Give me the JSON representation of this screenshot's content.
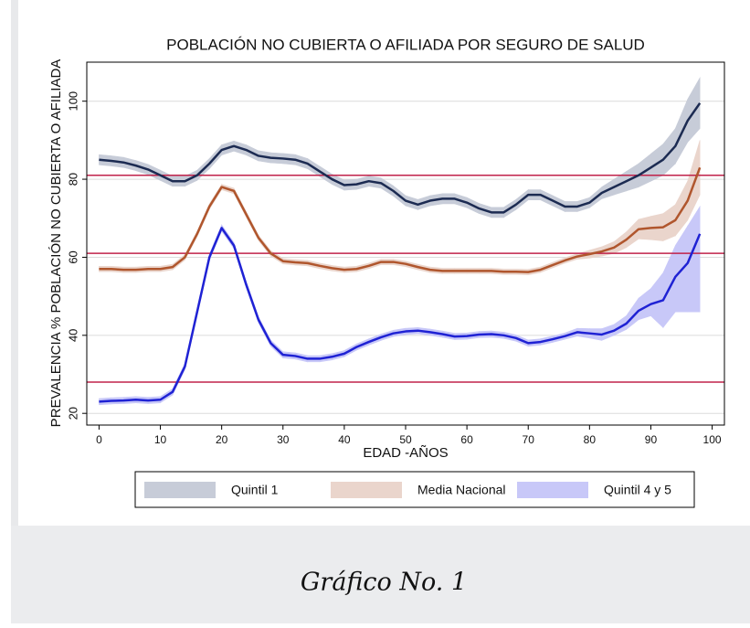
{
  "chart_data": {
    "type": "line",
    "title": "POBLACIÓN NO CUBIERTA O AFILIADA POR SEGURO DE SALUD",
    "x_label": "EDAD -AÑOS",
    "y_label": "PREVALENCIA % POBLACIÓN NO CUBIERTA O AFILIADA",
    "xlim": [
      -2,
      102
    ],
    "ylim": [
      17,
      110
    ],
    "xticks": [
      0,
      10,
      20,
      30,
      40,
      50,
      60,
      70,
      80,
      90,
      100
    ],
    "yticks": [
      20,
      40,
      60,
      80,
      100
    ],
    "grid": true,
    "hlines": [
      81,
      61,
      28
    ],
    "hline_color": "#c0224a",
    "x": [
      0,
      2,
      4,
      6,
      8,
      10,
      12,
      14,
      16,
      18,
      20,
      22,
      24,
      26,
      28,
      30,
      32,
      34,
      36,
      38,
      40,
      42,
      44,
      46,
      48,
      50,
      52,
      54,
      56,
      58,
      60,
      62,
      64,
      66,
      68,
      70,
      72,
      74,
      76,
      78,
      80,
      82,
      84,
      86,
      88,
      90,
      92,
      94,
      96,
      98
    ],
    "series": [
      {
        "name": "Quintil 1",
        "color": "#1c2b52",
        "band_color": "#c7ccd8",
        "values": [
          85,
          84.7,
          84.3,
          83.5,
          82.5,
          81,
          79.5,
          79.5,
          81,
          84,
          87.5,
          88.5,
          87.5,
          86,
          85.5,
          85.3,
          85,
          84,
          82,
          80,
          78.5,
          78.7,
          79.5,
          79,
          77,
          74.5,
          73.5,
          74.5,
          75,
          75,
          74,
          72.5,
          71.5,
          71.5,
          73.5,
          76,
          76,
          74.5,
          73,
          73,
          74,
          76.5,
          78,
          79.5,
          81,
          83,
          85,
          88.5,
          95,
          99.5
        ],
        "lower": [
          83.7,
          83.4,
          83,
          82.2,
          81.2,
          79.7,
          78.2,
          78.2,
          79.7,
          82.7,
          86.2,
          87.2,
          86.2,
          84.7,
          84.2,
          84,
          83.7,
          82.7,
          80.7,
          78.7,
          77.2,
          77.4,
          78.2,
          77.7,
          75.7,
          73.2,
          72.2,
          73.2,
          73.7,
          73.7,
          72.7,
          71.2,
          70.2,
          70.2,
          72.2,
          74.7,
          74.7,
          73.2,
          71.7,
          71.7,
          72.7,
          75,
          76,
          77,
          78,
          79.5,
          81,
          84,
          89.5,
          93
        ],
        "upper": [
          86.3,
          86,
          85.6,
          84.8,
          83.8,
          82.3,
          80.8,
          80.8,
          82.3,
          85.3,
          88.8,
          89.8,
          88.8,
          87.3,
          86.8,
          86.6,
          86.3,
          85.3,
          83.3,
          81.3,
          79.8,
          80,
          80.8,
          80.3,
          78.3,
          75.8,
          74.8,
          75.8,
          76.3,
          76.3,
          75.3,
          73.8,
          72.8,
          72.8,
          74.8,
          77.3,
          77.3,
          75.8,
          74.3,
          74.3,
          75.3,
          78,
          80,
          82,
          84,
          86.5,
          89,
          93,
          100.5,
          106
        ]
      },
      {
        "name": "Media Nacional",
        "color": "#b0562d",
        "band_color": "#ead5cc",
        "values": [
          57,
          57,
          56.8,
          56.8,
          57,
          57,
          57.5,
          60,
          66,
          73,
          78,
          77,
          71,
          65,
          61,
          59,
          58.7,
          58.5,
          57.8,
          57.2,
          56.8,
          57,
          57.8,
          58.8,
          58.8,
          58.3,
          57.5,
          56.8,
          56.5,
          56.5,
          56.5,
          56.5,
          56.5,
          56.3,
          56.3,
          56.2,
          56.8,
          58,
          59.2,
          60.2,
          60.8,
          61.5,
          62.5,
          64.5,
          67.2,
          67.5,
          67.7,
          69.5,
          74.5,
          83
        ],
        "lower": [
          56.3,
          56.3,
          56.1,
          56.1,
          56.3,
          56.3,
          56.8,
          59.3,
          65.3,
          72.3,
          77.3,
          76.3,
          70.3,
          64.3,
          60.3,
          58.3,
          58,
          57.8,
          57.1,
          56.5,
          56.1,
          56.3,
          57.1,
          58.1,
          58.1,
          57.6,
          56.8,
          56.1,
          55.8,
          55.8,
          55.8,
          55.8,
          55.8,
          55.6,
          55.6,
          55.5,
          56.1,
          57.3,
          58.5,
          59.5,
          59.8,
          60.3,
          61,
          62.5,
          64.7,
          64.5,
          64.2,
          65.5,
          69.5,
          76
        ],
        "upper": [
          57.7,
          57.7,
          57.5,
          57.5,
          57.7,
          57.7,
          58.2,
          60.7,
          66.7,
          73.7,
          78.7,
          77.7,
          71.7,
          65.7,
          61.7,
          59.7,
          59.4,
          59.2,
          58.5,
          57.9,
          57.5,
          57.7,
          58.5,
          59.5,
          59.5,
          59,
          58.2,
          57.5,
          57.2,
          57.2,
          57.2,
          57.2,
          57.2,
          57,
          57,
          56.9,
          57.5,
          58.7,
          59.9,
          60.9,
          61.8,
          62.7,
          64,
          66.5,
          69.7,
          70.5,
          71.2,
          73.5,
          79.5,
          90
        ]
      },
      {
        "name": "Quintil 4 y 5",
        "color": "#1f22d4",
        "band_color": "#c8c8f8",
        "values": [
          23,
          23.2,
          23.3,
          23.5,
          23.3,
          23.5,
          25.5,
          32,
          46,
          60,
          67.5,
          63,
          53,
          44,
          38,
          35,
          34.7,
          34,
          34,
          34.5,
          35.3,
          37,
          38.3,
          39.5,
          40.5,
          41,
          41.2,
          40.8,
          40.3,
          39.7,
          39.8,
          40.2,
          40.3,
          40,
          39.3,
          38,
          38.3,
          39,
          39.8,
          40.8,
          40.5,
          40.2,
          41.2,
          43,
          46.3,
          48,
          49,
          55,
          58.5,
          66
        ],
        "lower": [
          22.2,
          22.4,
          22.5,
          22.7,
          22.5,
          22.7,
          24.7,
          31.2,
          45.2,
          59.2,
          66.7,
          62.2,
          52.2,
          43.2,
          37.2,
          34.2,
          33.9,
          33.2,
          33.2,
          33.7,
          34.5,
          36.2,
          37.5,
          38.7,
          39.7,
          40.2,
          40.4,
          40,
          39.5,
          38.9,
          39,
          39.4,
          39.5,
          39.2,
          38.5,
          37.2,
          37.5,
          38.2,
          39,
          39.8,
          39.3,
          38.7,
          40,
          41.5,
          44,
          45,
          42,
          46,
          46,
          46
        ],
        "upper": [
          23.8,
          24,
          24.1,
          24.3,
          24.1,
          24.3,
          26.3,
          32.8,
          46.8,
          60.8,
          68.3,
          63.8,
          53.8,
          44.8,
          38.8,
          35.8,
          35.5,
          34.8,
          34.8,
          35.3,
          36.1,
          37.8,
          39.1,
          40.3,
          41.3,
          41.8,
          42,
          41.6,
          41.1,
          40.5,
          40.6,
          41,
          41.1,
          40.8,
          40.1,
          38.8,
          39.1,
          39.8,
          40.6,
          41.8,
          41.7,
          41.7,
          42.8,
          45,
          49.5,
          52,
          56,
          63,
          68,
          73
        ]
      }
    ],
    "caption": "Gráfico No. 1"
  }
}
